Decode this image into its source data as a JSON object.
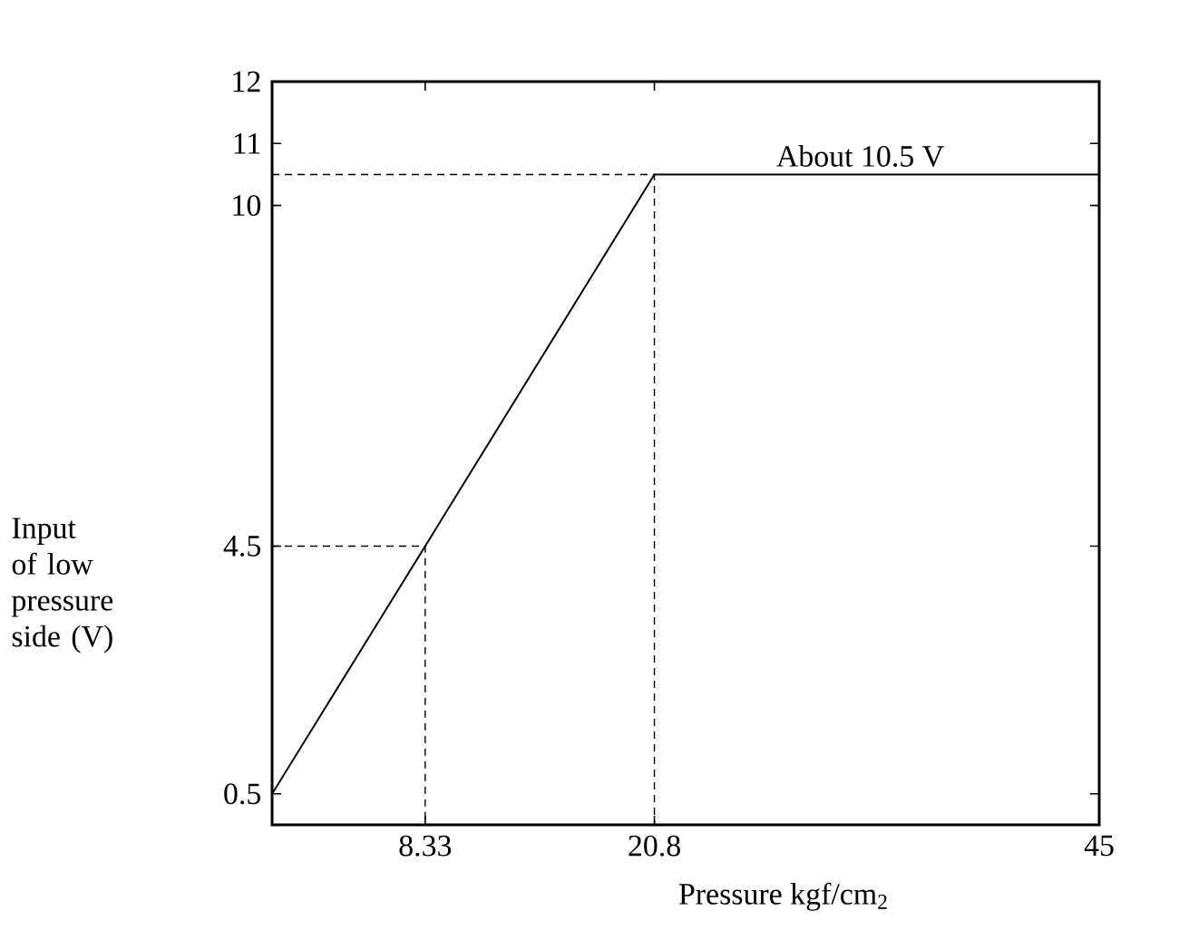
{
  "chart_data": {
    "type": "line",
    "xlabel": "Pressure kgf/cm$_{2}$",
    "ylabel": "Input of low pressure side (V)",
    "xlim": [
      0,
      45
    ],
    "ylim": [
      0,
      12
    ],
    "xticks": [
      8.33,
      20.8,
      45
    ],
    "yticks": [
      0.5,
      4.5,
      10,
      11,
      12
    ],
    "annotations": [
      {
        "text": "About 10.5 V",
        "x": 32,
        "y": 10.5
      }
    ],
    "marker": "none",
    "grid": false,
    "series": [
      {
        "color": "#000000",
        "x": [
          0,
          8.33,
          20.8,
          45
        ],
        "values": [
          0.5,
          4.5,
          10.5,
          10.5
        ],
        "line_style": "solid"
      },
      {
        "color": "#000000",
        "x": [
          0,
          8.33,
          8.33
        ],
        "values": [
          4.5,
          4.5,
          0
        ],
        "line_style": "dashed"
      },
      {
        "color": "#000000",
        "x": [
          0,
          20.8,
          20.8
        ],
        "values": [
          10.5,
          10.5,
          0
        ],
        "line_style": "dashed"
      }
    ]
  }
}
